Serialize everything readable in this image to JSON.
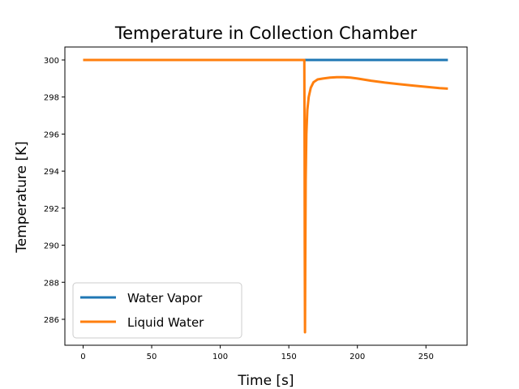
{
  "chart_data": {
    "type": "line",
    "title": "Temperature in Collection Chamber",
    "xlabel": "Time [s]",
    "ylabel": "Temperature [K]",
    "xlim": [
      -13.3,
      280
    ],
    "ylim": [
      284.6,
      300.7
    ],
    "xticks": [
      0,
      50,
      100,
      150,
      200,
      250
    ],
    "yticks": [
      286,
      288,
      290,
      292,
      294,
      296,
      298,
      300
    ],
    "grid": false,
    "legend_position": "lower-left",
    "series": [
      {
        "name": "Water Vapor",
        "color": "#1f77b4",
        "x": [
          0,
          50,
          100,
          150,
          161,
          162,
          200,
          250,
          266
        ],
        "y": [
          300,
          300,
          300,
          300,
          300,
          300,
          300,
          300,
          300
        ]
      },
      {
        "name": "Liquid Water",
        "color": "#ff7f0e",
        "x": [
          0,
          50,
          100,
          150,
          161.3,
          161.5,
          161.6,
          161.8,
          162.0,
          162.3,
          162.8,
          163.5,
          164.5,
          166,
          168,
          171,
          175,
          180,
          185,
          190,
          195,
          200,
          210,
          220,
          230,
          240,
          250,
          260,
          266
        ],
        "y": [
          300,
          300,
          300,
          300,
          300,
          295.0,
          290.0,
          285.3,
          289.0,
          293.5,
          296.0,
          297.3,
          298.0,
          298.5,
          298.8,
          298.95,
          299.0,
          299.05,
          299.07,
          299.07,
          299.05,
          299.0,
          298.88,
          298.78,
          298.7,
          298.62,
          298.55,
          298.48,
          298.45
        ]
      }
    ]
  }
}
